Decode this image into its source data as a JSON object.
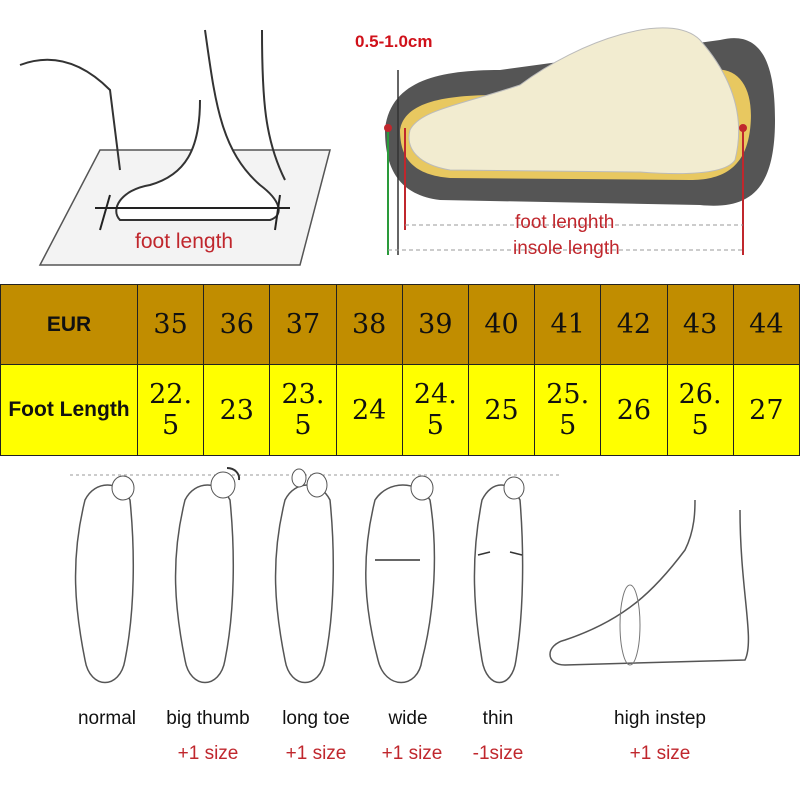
{
  "top_left": {
    "label": "foot length"
  },
  "top_right": {
    "tolerance": "0.5-1.0cm",
    "foot_length": "foot lenghth",
    "insole_length": "insole length"
  },
  "table": {
    "header_label": "EUR",
    "row_label": "Foot Length",
    "eur": [
      "35",
      "36",
      "37",
      "38",
      "39",
      "40",
      "41",
      "42",
      "43",
      "44"
    ],
    "foot_length": [
      "22. 5",
      "23",
      "23. 5",
      "24",
      "24. 5",
      "25",
      "25. 5",
      "26",
      "26. 5",
      "27"
    ],
    "colors": {
      "header": "#c18d00",
      "row": "#ffff00"
    }
  },
  "foot_types": [
    {
      "name": "normal",
      "adjust": ""
    },
    {
      "name": "big thumb",
      "adjust": "+1 size"
    },
    {
      "name": "long toe",
      "adjust": "+1 size"
    },
    {
      "name": "wide",
      "adjust": "+1 size"
    },
    {
      "name": "thin",
      "adjust": "-1size"
    },
    {
      "name": "high instep",
      "adjust": "+1 size"
    }
  ]
}
